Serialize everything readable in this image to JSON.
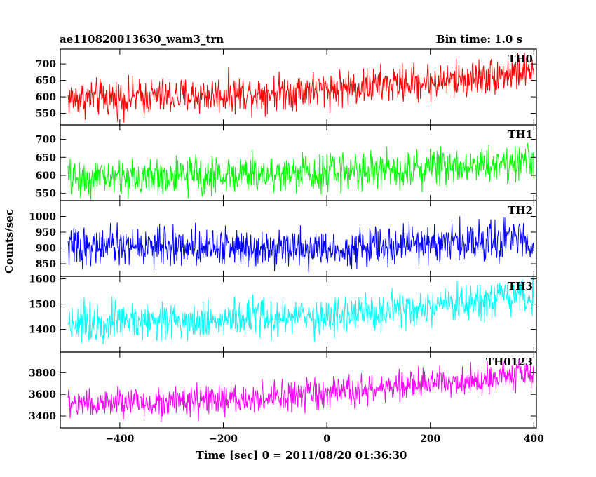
{
  "chart_data": {
    "type": "line",
    "title": "ae110820013630_wam3_trn",
    "bin_time": "Bin time: 1.0 s",
    "xlabel": "Time [sec] 0 = 2011/08/20 01:36:30",
    "ylabel": "Counts/sec",
    "xlim": [
      -515,
      405
    ],
    "xticks": [
      -400,
      -200,
      0,
      200,
      400
    ],
    "data_range": [
      -500,
      400
    ],
    "panels": [
      {
        "name": "TH0",
        "color": "#ff0000",
        "ylim": [
          515,
          745
        ],
        "yticks": [
          550,
          600,
          650,
          700
        ],
        "trend": [
          [
            -500,
            595
          ],
          [
            -300,
            600
          ],
          [
            -100,
            615
          ],
          [
            100,
            635
          ],
          [
            250,
            650
          ],
          [
            400,
            680
          ]
        ],
        "noise": 28
      },
      {
        "name": "TH1",
        "color": "#00ff00",
        "ylim": [
          530,
          740
        ],
        "yticks": [
          550,
          600,
          650,
          700
        ],
        "trend": [
          [
            -500,
            590
          ],
          [
            -200,
            600
          ],
          [
            100,
            615
          ],
          [
            400,
            640
          ]
        ],
        "noise": 26
      },
      {
        "name": "TH2",
        "color": "#0000ff",
        "ylim": [
          810,
          1050
        ],
        "yticks": [
          850,
          900,
          950,
          1000
        ],
        "trend": [
          [
            -500,
            905
          ],
          [
            -100,
            905
          ],
          [
            0,
            895
          ],
          [
            100,
            905
          ],
          [
            400,
            930
          ]
        ],
        "noise": 30
      },
      {
        "name": "TH3",
        "color": "#00ffff",
        "ylim": [
          1310,
          1610
        ],
        "yticks": [
          1400,
          1500,
          1600
        ],
        "trend": [
          [
            -500,
            1430
          ],
          [
            -200,
            1440
          ],
          [
            0,
            1450
          ],
          [
            200,
            1480
          ],
          [
            400,
            1530
          ]
        ],
        "noise": 38
      },
      {
        "name": "TH0123",
        "color": "#ff00ff",
        "ylim": [
          3290,
          3990
        ],
        "yticks": [
          3400,
          3600,
          3800
        ],
        "trend": [
          [
            -500,
            3510
          ],
          [
            -200,
            3540
          ],
          [
            0,
            3600
          ],
          [
            200,
            3700
          ],
          [
            400,
            3800
          ]
        ],
        "noise": 70
      }
    ]
  }
}
